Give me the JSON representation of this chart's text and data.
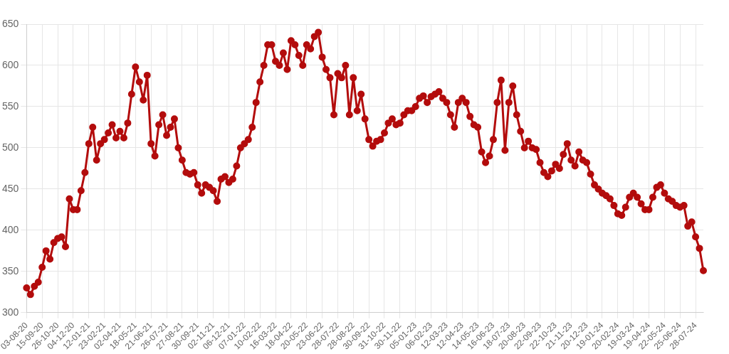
{
  "chart_data": {
    "type": "line",
    "categories": [
      "03-08-20",
      null,
      null,
      null,
      "15-09-20",
      null,
      null,
      null,
      "26-10-20",
      null,
      null,
      null,
      "04-12-20",
      null,
      null,
      null,
      "12-01-21",
      null,
      null,
      null,
      "23-02-21",
      null,
      null,
      null,
      "02-04-21",
      null,
      null,
      null,
      "18-05-21",
      null,
      null,
      null,
      "21-06-21",
      null,
      null,
      null,
      "26-07-21",
      null,
      null,
      null,
      "27-08-21",
      null,
      null,
      null,
      "30-09-21",
      null,
      null,
      null,
      "02-11-21",
      null,
      null,
      null,
      "06-12-21",
      null,
      null,
      null,
      "07-01-22",
      null,
      null,
      null,
      "10-02-22",
      null,
      null,
      null,
      "16-03-22",
      null,
      null,
      null,
      "18-04-22",
      null,
      null,
      null,
      "20-05-22",
      null,
      null,
      null,
      "23-06-22",
      null,
      null,
      null,
      "28-07-22",
      null,
      null,
      null,
      "28-08-22",
      null,
      null,
      null,
      "30-09-22",
      null,
      null,
      null,
      "31-10-22",
      null,
      null,
      null,
      "30-11-22",
      null,
      null,
      null,
      "05-01-23",
      null,
      null,
      null,
      "06-02-23",
      null,
      null,
      null,
      "12-03-23",
      null,
      null,
      null,
      "12-04-23",
      null,
      null,
      null,
      "14-05-23",
      null,
      null,
      null,
      "16-06-23",
      null,
      null,
      null,
      "18-07-23",
      null,
      null,
      null,
      "20-08-23",
      null,
      null,
      null,
      "22-09-23",
      null,
      null,
      null,
      "22-10-23",
      null,
      null,
      null,
      "21-11-23",
      null,
      null,
      null,
      "20-12-23",
      null,
      null,
      null,
      "19-01-24",
      null,
      null,
      null,
      "20-02-24",
      null,
      null,
      null,
      "19-03-24",
      null,
      null,
      null,
      "19-04-24",
      null,
      null,
      null,
      "22-05-24",
      null,
      null,
      null,
      "25-06-24",
      null,
      null,
      null,
      "28-07-24",
      null,
      null
    ],
    "series": [
      {
        "color": "#b30c0c",
        "values": [
          330,
          322,
          332,
          337,
          355,
          375,
          365,
          385,
          390,
          392,
          380,
          438,
          425,
          425,
          448,
          470,
          505,
          525,
          485,
          505,
          510,
          518,
          528,
          512,
          520,
          512,
          530,
          565,
          598,
          580,
          558,
          588,
          505,
          490,
          528,
          540,
          515,
          525,
          535,
          500,
          485,
          470,
          468,
          470,
          455,
          445,
          455,
          452,
          448,
          435,
          462,
          465,
          458,
          462,
          478,
          500,
          505,
          510,
          525,
          555,
          580,
          600,
          625,
          625,
          605,
          600,
          615,
          595,
          630,
          625,
          612,
          600,
          625,
          620,
          635,
          640,
          610,
          595,
          585,
          540,
          590,
          585,
          600,
          540,
          585,
          545,
          565,
          535,
          510,
          502,
          508,
          510,
          518,
          530,
          535,
          528,
          530,
          540,
          545,
          545,
          550,
          560,
          563,
          555,
          562,
          565,
          568,
          560,
          555,
          540,
          525,
          555,
          560,
          555,
          538,
          528,
          525,
          495,
          482,
          490,
          510,
          555,
          582,
          497,
          555,
          575,
          540,
          520,
          500,
          508,
          500,
          498,
          482,
          470,
          465,
          472,
          480,
          475,
          492,
          505,
          485,
          478,
          495,
          485,
          482,
          468,
          455,
          450,
          445,
          442,
          438,
          430,
          420,
          418,
          428,
          440,
          445,
          440,
          432,
          425,
          425,
          440,
          452,
          455,
          445,
          438,
          435,
          430,
          428,
          430,
          405,
          410,
          392,
          378,
          351
        ]
      }
    ],
    "ylim": [
      300,
      650
    ],
    "yticks": [
      300,
      350,
      400,
      450,
      500,
      550,
      600,
      650
    ],
    "grid": true,
    "marker": "circle",
    "line_style": "solid"
  }
}
